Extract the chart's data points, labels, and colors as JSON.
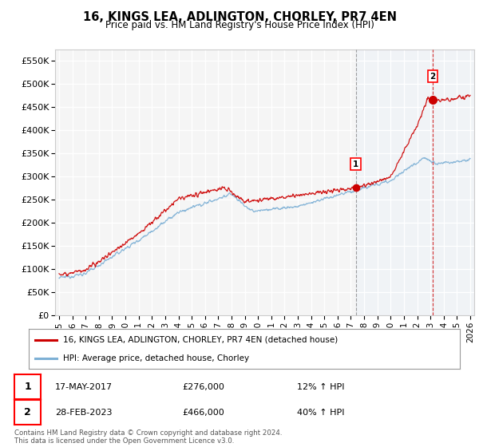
{
  "title": "16, KINGS LEA, ADLINGTON, CHORLEY, PR7 4EN",
  "subtitle": "Price paid vs. HM Land Registry's House Price Index (HPI)",
  "ylabel_ticks": [
    "£0",
    "£50K",
    "£100K",
    "£150K",
    "£200K",
    "£250K",
    "£300K",
    "£350K",
    "£400K",
    "£450K",
    "£500K",
    "£550K"
  ],
  "ytick_values": [
    0,
    50000,
    100000,
    150000,
    200000,
    250000,
    300000,
    350000,
    400000,
    450000,
    500000,
    550000
  ],
  "ylim": [
    0,
    575000
  ],
  "xlim_start": 1995,
  "xlim_end": 2026,
  "xtick_years": [
    1995,
    1996,
    1997,
    1998,
    1999,
    2000,
    2001,
    2002,
    2003,
    2004,
    2005,
    2006,
    2007,
    2008,
    2009,
    2010,
    2011,
    2012,
    2013,
    2014,
    2015,
    2016,
    2017,
    2018,
    2019,
    2020,
    2021,
    2022,
    2023,
    2024,
    2025,
    2026
  ],
  "red_color": "#cc0000",
  "blue_color": "#7db0d5",
  "shade_color": "#ddeeff",
  "marker1_x": 2017.37,
  "marker1_y": 276000,
  "marker2_x": 2023.16,
  "marker2_y": 466000,
  "legend_label_red": "16, KINGS LEA, ADLINGTON, CHORLEY, PR7 4EN (detached house)",
  "legend_label_blue": "HPI: Average price, detached house, Chorley",
  "annotation1_date": "17-MAY-2017",
  "annotation1_price": "£276,000",
  "annotation1_hpi": "12% ↑ HPI",
  "annotation2_date": "28-FEB-2023",
  "annotation2_price": "£466,000",
  "annotation2_hpi": "40% ↑ HPI",
  "footer": "Contains HM Land Registry data © Crown copyright and database right 2024.\nThis data is licensed under the Open Government Licence v3.0.",
  "background_color": "#ffffff",
  "plot_bg_color": "#f5f5f5"
}
